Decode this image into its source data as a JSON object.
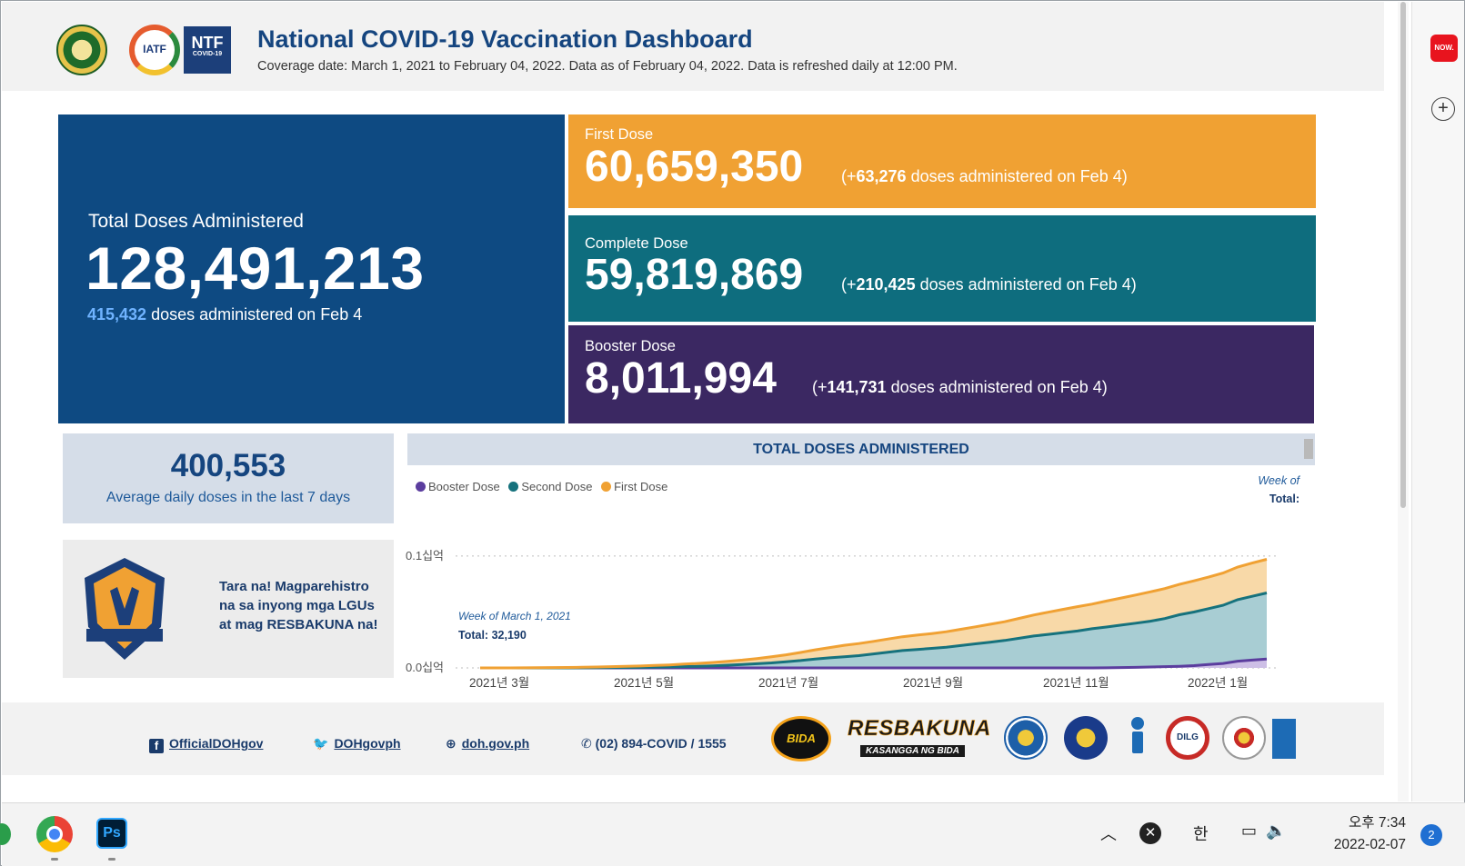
{
  "header": {
    "title": "National COVID-19 Vaccination Dashboard",
    "subtitle": "Coverage date: March 1, 2021 to February 04, 2022. Data as of February 04, 2022. Data is refreshed daily at 12:00 PM.",
    "logos": {
      "iatf": "IATF",
      "ntf_big": "NTF",
      "ntf_small": "COVID-19"
    }
  },
  "sidepanel": {
    "now_label": "NOW.",
    "plus_label": "+"
  },
  "total_card": {
    "label": "Total Doses Administered",
    "value": "128,491,213",
    "daily_value": "415,432",
    "daily_text": " doses administered on Feb 4"
  },
  "first_dose": {
    "label": "First Dose",
    "value": "60,659,350",
    "inc_open": "(+",
    "inc_value": "63,276",
    "inc_text": " doses administered on Feb 4)"
  },
  "complete_dose": {
    "label": "Complete Dose",
    "value": "59,819,869",
    "inc_open": "(+",
    "inc_value": "210,425",
    "inc_text": " doses administered on Feb 4)"
  },
  "booster_dose": {
    "label": "Booster Dose",
    "value": "8,011,994",
    "inc_open": "(+",
    "inc_value": "141,731",
    "inc_text": " doses administered on Feb 4)"
  },
  "average": {
    "value": "400,553",
    "label": "Average daily doses in the last 7 days"
  },
  "promo": {
    "text": "Tara na! Magparehistro na sa inyong mga LGUs at mag RESBAKUNA na!"
  },
  "chart_data": {
    "type": "area",
    "title": "TOTAL DOSES ADMINISTERED",
    "legend_position": "top-left",
    "series": [
      {
        "name": "Booster Dose",
        "color": "#5b3d9e",
        "values": [
          0,
          0,
          0,
          0,
          0,
          0,
          0,
          0,
          0,
          0,
          0,
          0,
          0,
          0,
          0,
          0,
          0,
          0,
          0,
          0,
          0,
          0,
          0,
          0,
          0,
          0,
          0,
          0,
          0,
          0,
          0,
          0,
          0,
          0,
          0,
          0,
          0,
          0,
          0,
          0,
          0,
          0,
          0,
          0.0001,
          0.0003,
          0.0005,
          0.0008,
          0.0011,
          0.0015,
          0.002,
          0.003,
          0.004,
          0.006,
          0.007,
          0.008
        ]
      },
      {
        "name": "Second Dose",
        "color": "#16727d",
        "values": [
          0,
          0,
          0,
          0,
          0,
          0,
          0,
          0.0001,
          0.0002,
          0.0003,
          0.0004,
          0.0005,
          0.0007,
          0.0009,
          0.0012,
          0.0015,
          0.0019,
          0.0024,
          0.003,
          0.0037,
          0.0045,
          0.0055,
          0.0066,
          0.008,
          0.009,
          0.01,
          0.011,
          0.0125,
          0.014,
          0.0155,
          0.0165,
          0.0175,
          0.0185,
          0.02,
          0.0215,
          0.023,
          0.0245,
          0.0265,
          0.0285,
          0.03,
          0.0315,
          0.033,
          0.035,
          0.0365,
          0.038,
          0.0395,
          0.041,
          0.043,
          0.046,
          0.048,
          0.05,
          0.052,
          0.055,
          0.057,
          0.059
        ]
      },
      {
        "name": "First Dose",
        "color": "#f0a133",
        "values": [
          0,
          0,
          0,
          0.0001,
          0.0002,
          0.0003,
          0.0004,
          0.0005,
          0.0006,
          0.0008,
          0.001,
          0.0012,
          0.0015,
          0.0018,
          0.0022,
          0.0026,
          0.003,
          0.0035,
          0.004,
          0.0047,
          0.0055,
          0.0062,
          0.0072,
          0.0082,
          0.0092,
          0.0102,
          0.0108,
          0.0112,
          0.0118,
          0.0124,
          0.0128,
          0.0132,
          0.0138,
          0.0145,
          0.0152,
          0.016,
          0.0168,
          0.0178,
          0.0188,
          0.0198,
          0.0208,
          0.0218,
          0.022,
          0.0232,
          0.0242,
          0.0252,
          0.0262,
          0.0268,
          0.0272,
          0.0278,
          0.0282,
          0.0288,
          0.0292,
          0.0298,
          0.0301
        ]
      }
    ],
    "x_tick_labels": [
      "2021년 3월",
      "2021년 5월",
      "2021년 7월",
      "2021년 9월",
      "2021년 11월",
      "2022년 1월"
    ],
    "y_tick_labels": [
      "0.0십억",
      "0.1십억"
    ],
    "y_ticks": [
      0,
      0.1
    ],
    "ylim": [
      0,
      0.13
    ],
    "grid": "dotted",
    "header_week": "Week of",
    "header_total": "Total:",
    "tooltip_week": "Week of March 1, 2021",
    "tooltip_total": "Total: 32,190"
  },
  "footer": {
    "facebook": "OfficialDOHgov",
    "twitter": "DOHgovph",
    "website": "doh.gov.ph",
    "phone": "(02) 894-COVID / 1555",
    "bida": "BIDA",
    "resbakuna_main": "RESBAKUNA",
    "resbakuna_sub": "KASANGGA NG BIDA",
    "dilg": "DILG"
  },
  "taskbar": {
    "ps_label": "Ps",
    "ime": "한",
    "time": "오후 7:34",
    "date": "2022-02-07",
    "notification_count": "2"
  }
}
